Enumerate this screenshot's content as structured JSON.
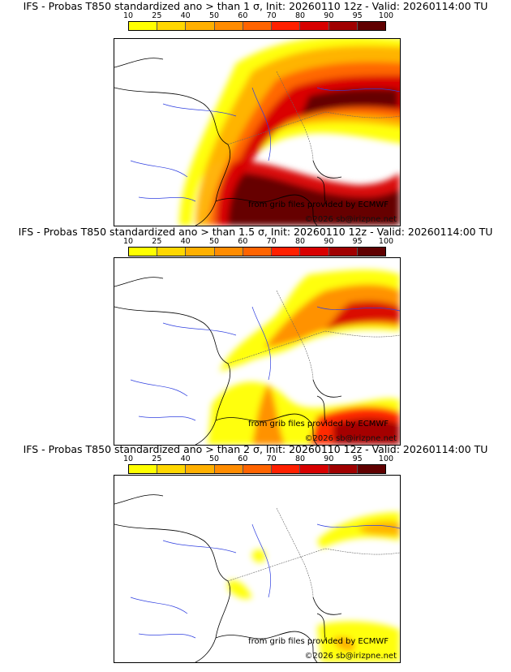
{
  "panels": [
    {
      "title": "IFS - Probas T850  standardized ano > than 1 σ, Init: 20260110 12z - Valid: 20260114:00 TU",
      "threshold_sigma": 1
    },
    {
      "title": "IFS - Probas T850  standardized ano > than 1.5 σ, Init: 20260110 12z - Valid: 20260114:00 TU",
      "threshold_sigma": 1.5
    },
    {
      "title": "IFS - Probas T850  standardized ano > than 2 σ, Init: 20260110 12z - Valid: 20260114:00 TU",
      "threshold_sigma": 2
    }
  ],
  "colorbar": {
    "ticks": [
      "10",
      "25",
      "40",
      "50",
      "60",
      "70",
      "80",
      "90",
      "95",
      "100"
    ],
    "colors": [
      "#ffff00",
      "#ffd700",
      "#ffb000",
      "#ff8c00",
      "#ff6400",
      "#ff2000",
      "#d80000",
      "#a00000",
      "#600000"
    ]
  },
  "credits": {
    "source": "from grib files provided by ECMWF",
    "copyright": "©2026 sb@irizpne.net"
  }
}
